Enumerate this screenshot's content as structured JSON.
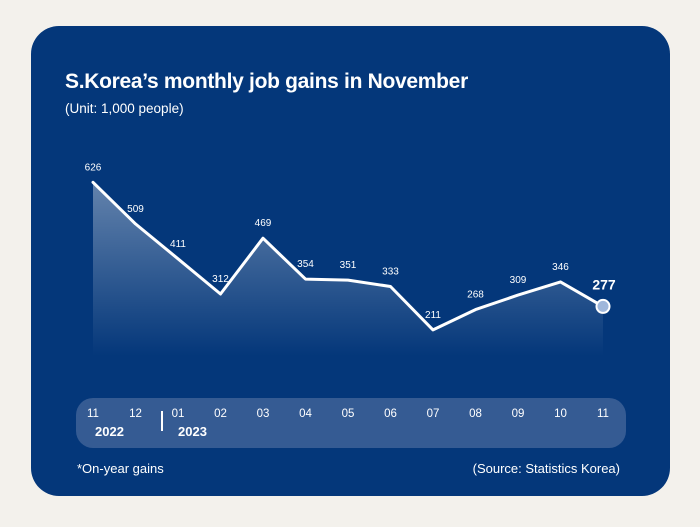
{
  "colors": {
    "page_background": "#f3f1ec",
    "card_background": "#04377a",
    "axis_bar": "#355b93",
    "line": "#ffffff",
    "marker": "#9fb7db"
  },
  "footnote": "*On-year gains",
  "source": "(Source: Statistics Korea)",
  "chart_data": {
    "type": "line",
    "title": "S.Korea’s monthly job gains in November",
    "subtitle": "(Unit: 1,000 people)",
    "categories": [
      "11",
      "12",
      "01",
      "02",
      "03",
      "04",
      "05",
      "06",
      "07",
      "08",
      "09",
      "10",
      "11"
    ],
    "year_labels": [
      "2022",
      "2023"
    ],
    "values": [
      626,
      509,
      411,
      312,
      469,
      354,
      351,
      333,
      211,
      268,
      309,
      346,
      277
    ],
    "highlight_last": true,
    "ylim": [
      150,
      650
    ],
    "grid": false,
    "fill_under_line": true
  }
}
